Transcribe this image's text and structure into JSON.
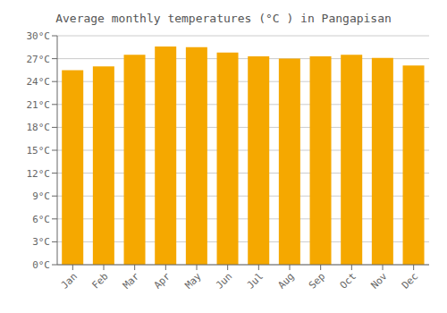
{
  "chart_data": {
    "type": "bar",
    "title": "Average monthly temperatures (°C ) in Pangapisan",
    "categories": [
      "Jan",
      "Feb",
      "Mar",
      "Apr",
      "May",
      "Jun",
      "Jul",
      "Aug",
      "Sep",
      "Oct",
      "Nov",
      "Dec"
    ],
    "values": [
      25.5,
      26.0,
      27.5,
      28.6,
      28.5,
      27.8,
      27.3,
      27.0,
      27.3,
      27.5,
      27.1,
      26.1
    ],
    "color": "#F5A800",
    "ylim": [
      0,
      30
    ],
    "yticks": [
      {
        "value": 0,
        "label": "0°C"
      },
      {
        "value": 3,
        "label": "3°C"
      },
      {
        "value": 6,
        "label": "6°C"
      },
      {
        "value": 9,
        "label": "9°C"
      },
      {
        "value": 12,
        "label": "12°C"
      },
      {
        "value": 15,
        "label": "15°C"
      },
      {
        "value": 18,
        "label": "18°C"
      },
      {
        "value": 21,
        "label": "21°C"
      },
      {
        "value": 24,
        "label": "24°C"
      },
      {
        "value": 27,
        "label": "27°C"
      },
      {
        "value": 30,
        "label": "30°C"
      }
    ],
    "grid": true
  }
}
